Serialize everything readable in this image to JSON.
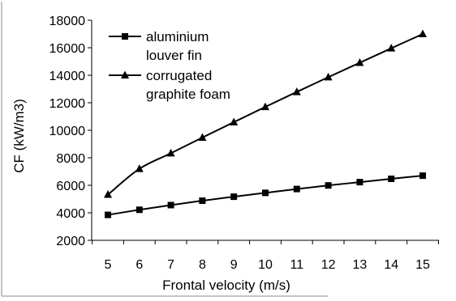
{
  "chart_data": {
    "type": "line",
    "title": "",
    "xlabel": "Frontal velocity (m/s)",
    "ylabel": "CF  (kW/m3)",
    "x": [
      5,
      6,
      7,
      8,
      9,
      10,
      11,
      12,
      13,
      14,
      15
    ],
    "xlim": [
      5,
      15
    ],
    "ylim": [
      2000,
      18000
    ],
    "yticks": [
      2000,
      4000,
      6000,
      8000,
      10000,
      12000,
      14000,
      16000,
      18000
    ],
    "grid": false,
    "legend_position": "top-left",
    "series": [
      {
        "name_lines": [
          "aluminium",
          "louver fin"
        ],
        "marker": "square",
        "color": "#000000",
        "values": [
          3850,
          4220,
          4560,
          4880,
          5170,
          5450,
          5730,
          5990,
          6230,
          6470,
          6700
        ]
      },
      {
        "name_lines": [
          "corrugated",
          "graphite foam"
        ],
        "marker": "triangle",
        "color": "#000000",
        "values": [
          5320,
          7200,
          8330,
          9470,
          10590,
          11700,
          12790,
          13860,
          14910,
          15960,
          17000
        ]
      }
    ]
  }
}
